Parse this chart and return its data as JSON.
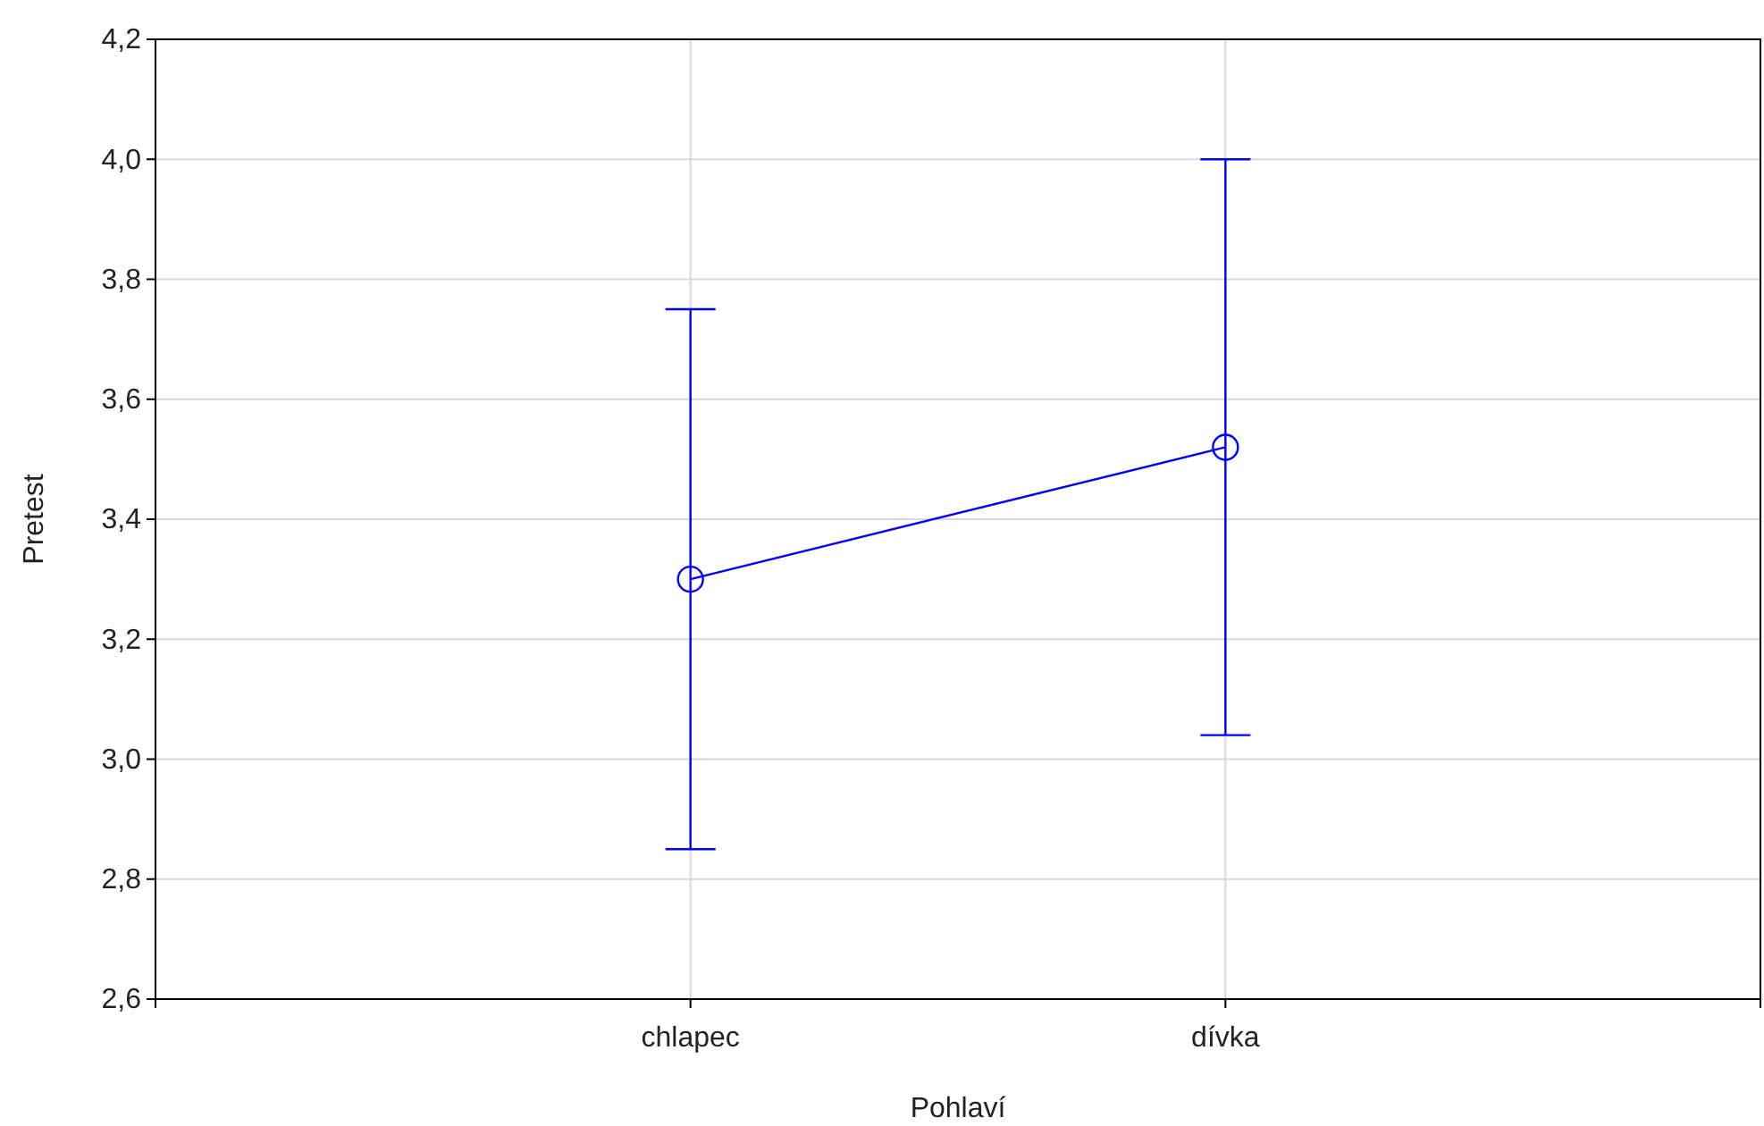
{
  "chart_data": {
    "type": "line",
    "xlabel": "Pohlaví",
    "ylabel": "Pretest",
    "categories": [
      "chlapec",
      "dívka"
    ],
    "series": [
      {
        "color": "#0000ff",
        "values": [
          3.3,
          3.52
        ],
        "errors": [
          [
            2.85,
            3.75
          ],
          [
            3.04,
            4.0
          ]
        ]
      }
    ],
    "ylim": [
      2.6,
      4.2
    ],
    "yticks": [
      {
        "value": 2.6,
        "label": "2,6"
      },
      {
        "value": 2.8,
        "label": "2,8"
      },
      {
        "value": 3.0,
        "label": "3,0"
      },
      {
        "value": 3.2,
        "label": "3,2"
      },
      {
        "value": 3.4,
        "label": "3,4"
      },
      {
        "value": 3.6,
        "label": "3,6"
      },
      {
        "value": 3.8,
        "label": "3,8"
      },
      {
        "value": 4.0,
        "label": "4,0"
      },
      {
        "value": 4.2,
        "label": "4,2"
      }
    ],
    "grid": true,
    "marker": "circle",
    "line_style": "solid"
  }
}
